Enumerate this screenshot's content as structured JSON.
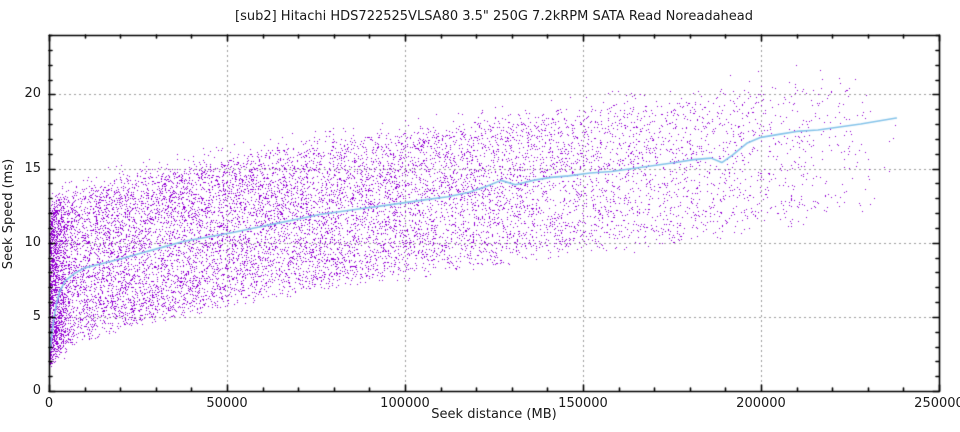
{
  "chart_data": {
    "type": "scatter",
    "title": "[sub2] Hitachi HDS722525VLSA80 3.5\" 250G 7.2kRPM SATA Read Noreadahead",
    "xlabel": "Seek distance (MB)",
    "ylabel": "Seek Speed (ms)",
    "xlim": [
      0,
      250000
    ],
    "ylim": [
      0,
      24
    ],
    "x_ticks": {
      "values": [
        0,
        50000,
        100000,
        150000,
        200000,
        250000
      ],
      "labels": [
        "0",
        "50000",
        "100000",
        "150000",
        "200000",
        "250000"
      ],
      "minor_step": 10000
    },
    "y_ticks": {
      "values": [
        0,
        5,
        10,
        15,
        20
      ],
      "labels": [
        "0",
        "5",
        "10",
        "15",
        "20"
      ],
      "minor_step": 1
    },
    "grid": {
      "on_major": true,
      "style": "dashed",
      "color": "#9e9e9e"
    },
    "colors": {
      "points": "#9400D3",
      "trend_line": "#85C4EA",
      "border": "#000000",
      "text": "#1a1a1a",
      "background": "#ffffff"
    },
    "series": [
      {
        "name": "seek-samples",
        "type": "points",
        "color": "#9400D3",
        "approx_count": 13200,
        "seed": 42,
        "x_max": 238400,
        "x_distribution": "triangular-decreasing",
        "envelope": {
          "x": [
            0,
            5000,
            10000,
            25000,
            50000,
            75000,
            100000,
            125000,
            150000,
            175000,
            200000,
            220000,
            238400
          ],
          "lower": [
            2.0,
            3.2,
            3.8,
            4.9,
            6.2,
            7.2,
            8.0,
            8.9,
            9.7,
            10.4,
            11.1,
            11.8,
            12.6
          ],
          "upper": [
            12.4,
            13.0,
            13.5,
            14.4,
            15.5,
            16.5,
            17.3,
            18.1,
            18.9,
            19.6,
            20.4,
            21.2,
            22.1
          ]
        }
      },
      {
        "name": "running-average",
        "type": "line",
        "color": "#85C4EA",
        "points": [
          [
            300,
            2.7
          ],
          [
            700,
            3.6
          ],
          [
            1200,
            4.6
          ],
          [
            2000,
            5.8
          ],
          [
            3000,
            6.7
          ],
          [
            4500,
            7.4
          ],
          [
            7000,
            7.9
          ],
          [
            10000,
            8.3
          ],
          [
            15000,
            8.6
          ],
          [
            20000,
            8.9
          ],
          [
            26000,
            9.3
          ],
          [
            32000,
            9.7
          ],
          [
            38000,
            10.1
          ],
          [
            45000,
            10.4
          ],
          [
            52000,
            10.7
          ],
          [
            58000,
            11.0
          ],
          [
            64000,
            11.3
          ],
          [
            70000,
            11.6
          ],
          [
            76000,
            11.9
          ],
          [
            82000,
            12.1
          ],
          [
            88000,
            12.3
          ],
          [
            94000,
            12.5
          ],
          [
            100000,
            12.7
          ],
          [
            106000,
            12.9
          ],
          [
            112000,
            13.1
          ],
          [
            118000,
            13.4
          ],
          [
            123000,
            13.8
          ],
          [
            127000,
            14.2
          ],
          [
            131000,
            13.9
          ],
          [
            136000,
            14.2
          ],
          [
            141000,
            14.4
          ],
          [
            146000,
            14.5
          ],
          [
            152000,
            14.7
          ],
          [
            158000,
            14.8
          ],
          [
            164000,
            15.0
          ],
          [
            170000,
            15.2
          ],
          [
            176000,
            15.4
          ],
          [
            181000,
            15.6
          ],
          [
            186000,
            15.7
          ],
          [
            189000,
            15.4
          ],
          [
            192000,
            15.9
          ],
          [
            196000,
            16.7
          ],
          [
            200000,
            17.1
          ],
          [
            205000,
            17.3
          ],
          [
            210000,
            17.5
          ],
          [
            216000,
            17.6
          ],
          [
            222000,
            17.8
          ],
          [
            228000,
            18.0
          ],
          [
            233000,
            18.2
          ],
          [
            238000,
            18.4
          ]
        ]
      }
    ]
  }
}
